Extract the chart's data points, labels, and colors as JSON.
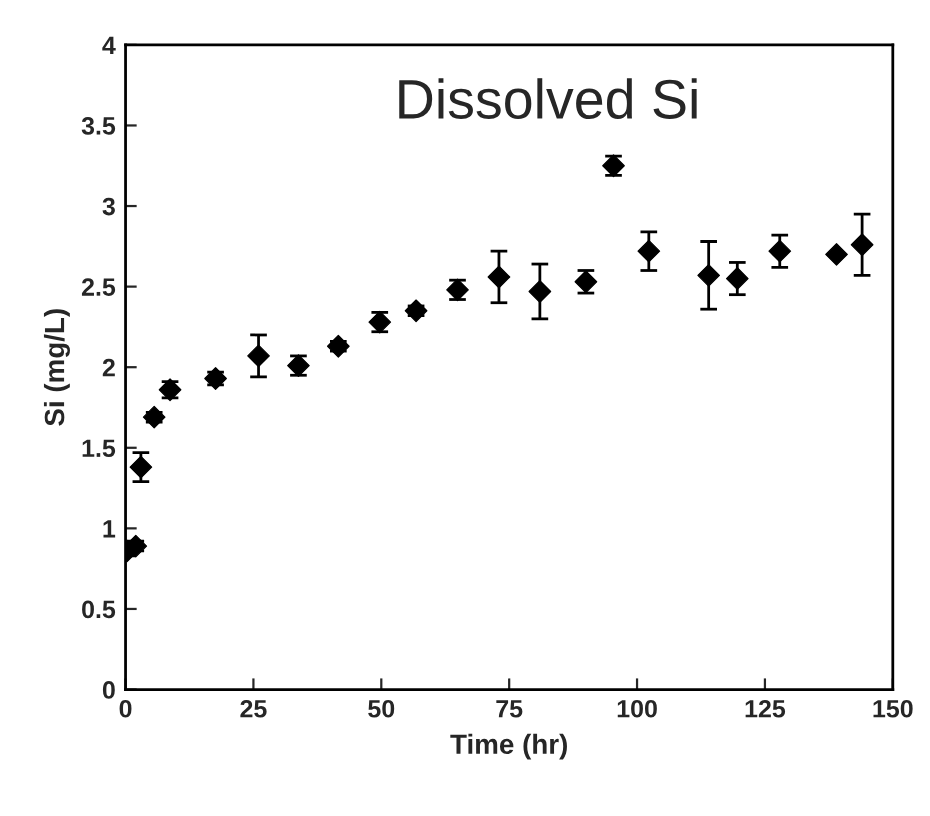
{
  "chart_data": {
    "type": "scatter",
    "title": "Dissolved Si",
    "xlabel": "Time (hr)",
    "ylabel": "Si (mg/L)",
    "x": [
      0.3,
      2,
      3,
      5.6,
      8.7,
      17.6,
      26,
      33.8,
      41.6,
      49.7,
      56.8,
      64.9,
      73,
      81,
      90,
      95.4,
      102.3,
      114,
      119.6,
      127.9,
      139,
      144
    ],
    "series": [
      {
        "color": "#000000",
        "values": [
          0.86,
          0.89,
          1.38,
          1.69,
          1.86,
          1.93,
          2.07,
          2.01,
          2.13,
          2.28,
          2.35,
          2.48,
          2.56,
          2.47,
          2.53,
          3.25,
          2.72,
          2.57,
          2.55,
          2.72,
          2.7,
          2.76
        ],
        "errors": [
          0.03,
          0.03,
          0.09,
          0.03,
          0.05,
          0.04,
          0.13,
          0.06,
          0.03,
          0.06,
          0.03,
          0.06,
          0.16,
          0.17,
          0.07,
          0.06,
          0.12,
          0.21,
          0.1,
          0.1,
          null,
          0.19
        ]
      }
    ],
    "marker": "diamond",
    "xlim": [
      0,
      150
    ],
    "xticks": [
      0,
      25,
      50,
      75,
      100,
      125,
      150
    ],
    "ylim": [
      0,
      4
    ],
    "yticks": [
      0,
      0.5,
      1,
      1.5,
      2,
      2.5,
      3,
      3.5,
      4
    ],
    "grid": false,
    "legend": false
  }
}
